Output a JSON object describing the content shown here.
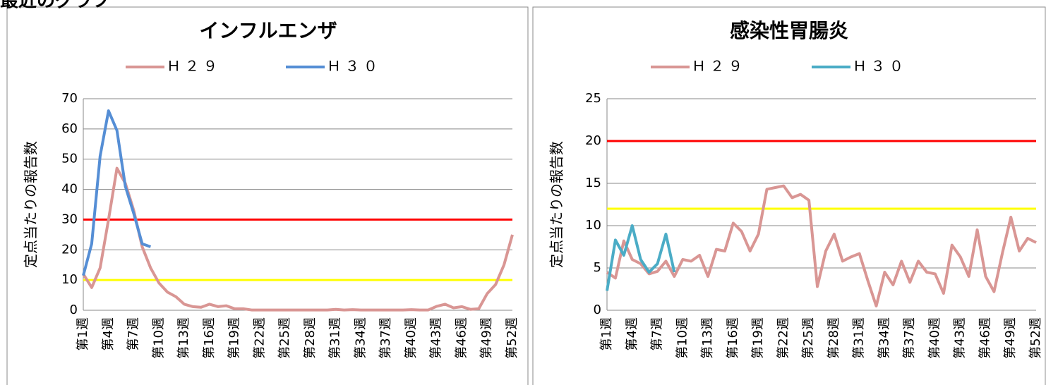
{
  "header": {
    "title": "最近のグラフ"
  },
  "chart_data": [
    {
      "type": "line",
      "title": "インフルエンザ",
      "ylabel": "定点当たりの報告数",
      "categories": [
        "第1週",
        null,
        null,
        "第4週",
        null,
        null,
        "第7週",
        null,
        null,
        "第10週",
        null,
        null,
        "第13週",
        null,
        null,
        "第16週",
        null,
        null,
        "第19週",
        null,
        null,
        "第22週",
        null,
        null,
        "第25週",
        null,
        null,
        "第28週",
        null,
        null,
        "第31週",
        null,
        null,
        "第34週",
        null,
        null,
        "第37週",
        null,
        null,
        "第40週",
        null,
        null,
        "第43週",
        null,
        null,
        "第46週",
        null,
        null,
        "第49週",
        null,
        null,
        "第52週"
      ],
      "series": [
        {
          "name": "Ｈ２９",
          "color": "#d99694",
          "values": [
            12,
            7.5,
            14,
            30,
            47,
            42,
            33,
            21,
            14,
            9,
            6,
            4.5,
            2,
            1.2,
            1,
            2,
            1.2,
            1.5,
            0.5,
            0.5,
            0.1,
            0.1,
            0.1,
            0.1,
            0.1,
            0.1,
            0.1,
            0.1,
            0.1,
            0.1,
            0.3,
            0.1,
            0.2,
            0.1,
            0.1,
            0.1,
            0.1,
            0.1,
            0.1,
            0.2,
            0.1,
            0.1,
            1.3,
            2,
            0.8,
            1.2,
            0.3,
            0.5,
            5.5,
            8.5,
            15,
            25
          ]
        },
        {
          "name": "Ｈ３０",
          "color": "#558ed5",
          "values": [
            11.5,
            22,
            51,
            66,
            59.5,
            41,
            32,
            22,
            21,
            null,
            null,
            null,
            null,
            null,
            null,
            null,
            null,
            null,
            null,
            null,
            null,
            null,
            null,
            null,
            null,
            null,
            null,
            null,
            null,
            null,
            null,
            null,
            null,
            null,
            null,
            null,
            null,
            null,
            null,
            null,
            null,
            null,
            null,
            null,
            null,
            null,
            null,
            null,
            null,
            null,
            null,
            null
          ]
        }
      ],
      "reference_lines": [
        {
          "value": 30,
          "color": "#ff0000"
        },
        {
          "value": 10,
          "color": "#ffff00"
        }
      ],
      "ylim": [
        0,
        70
      ],
      "yticks": [
        0,
        10,
        20,
        30,
        40,
        50,
        60,
        70
      ],
      "grid": true
    },
    {
      "type": "line",
      "title": "感染性胃腸炎",
      "ylabel": "定点当たりの報告数",
      "categories": [
        "第1週",
        null,
        null,
        "第4週",
        null,
        null,
        "第7週",
        null,
        null,
        "第10週",
        null,
        null,
        "第13週",
        null,
        null,
        "第16週",
        null,
        null,
        "第19週",
        null,
        null,
        "第22週",
        null,
        null,
        "第25週",
        null,
        null,
        "第28週",
        null,
        null,
        "第31週",
        null,
        null,
        "第34週",
        null,
        null,
        "第37週",
        null,
        null,
        "第40週",
        null,
        null,
        "第43週",
        null,
        null,
        "第46週",
        null,
        null,
        "第49週",
        null,
        null,
        "第52週"
      ],
      "series": [
        {
          "name": "Ｈ２９",
          "color": "#d99694",
          "values": [
            4.5,
            3.8,
            8.2,
            6,
            5.5,
            4.3,
            4.6,
            5.8,
            4,
            6,
            5.8,
            6.5,
            4,
            7.2,
            7,
            10.3,
            9.3,
            7,
            9,
            14.3,
            14.5,
            14.7,
            13.3,
            13.7,
            13,
            2.8,
            7,
            9,
            5.8,
            6.3,
            6.7,
            3.5,
            0.5,
            4.5,
            3,
            5.8,
            3.3,
            5.8,
            4.5,
            4.3,
            2,
            7.7,
            6.3,
            4,
            9.5,
            4,
            2.2,
            6.8,
            11,
            7,
            8.5,
            8
          ]
        },
        {
          "name": "Ｈ３０",
          "color": "#4bacc6",
          "values": [
            2.3,
            8.3,
            6.5,
            10,
            6,
            4.5,
            5.5,
            9,
            4.5,
            null,
            null,
            null,
            null,
            null,
            null,
            null,
            null,
            null,
            null,
            null,
            null,
            null,
            null,
            null,
            null,
            null,
            null,
            null,
            null,
            null,
            null,
            null,
            null,
            null,
            null,
            null,
            null,
            null,
            null,
            null,
            null,
            null,
            null,
            null,
            null,
            null,
            null,
            null,
            null,
            null,
            null,
            null
          ]
        }
      ],
      "reference_lines": [
        {
          "value": 20,
          "color": "#ff0000"
        },
        {
          "value": 12,
          "color": "#ffff00"
        }
      ],
      "ylim": [
        0,
        25
      ],
      "yticks": [
        0,
        5,
        10,
        15,
        20,
        25
      ],
      "grid": true
    }
  ]
}
